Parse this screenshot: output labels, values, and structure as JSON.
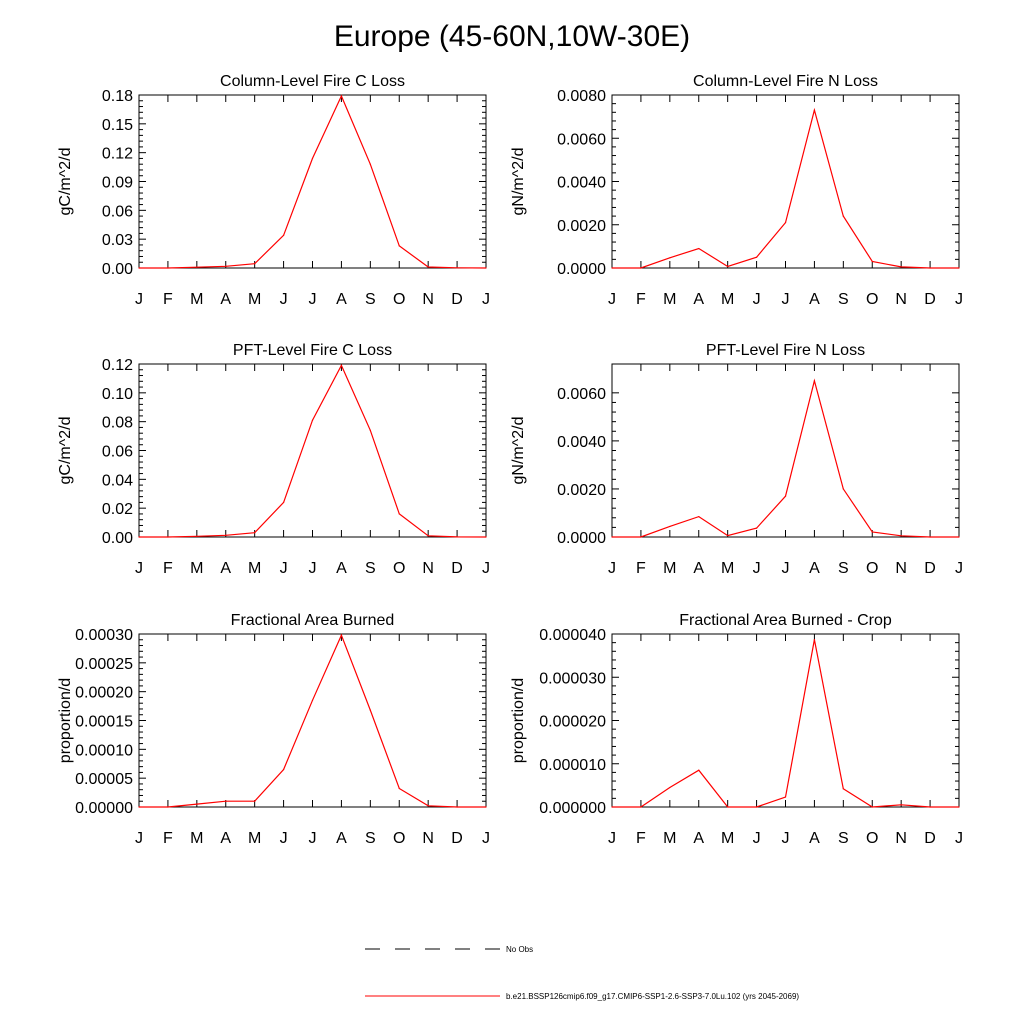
{
  "figure": {
    "title": "Europe (45-60N,10W-30E)"
  },
  "chart_data": [
    {
      "type": "line",
      "title": "Column-Level Fire C Loss",
      "ylabel": "gC/m^2/d",
      "xlabel": "",
      "categories": [
        "J",
        "F",
        "M",
        "A",
        "M",
        "J",
        "J",
        "A",
        "S",
        "O",
        "N",
        "D",
        "J"
      ],
      "ylim": [
        0,
        0.18
      ],
      "yticks": [
        "0.00",
        "0.03",
        "0.06",
        "0.09",
        "0.12",
        "0.15",
        "0.18"
      ],
      "series": [
        {
          "values": [
            0.0,
            0.0,
            0.0008,
            0.0018,
            0.0045,
            0.034,
            0.114,
            0.179,
            0.108,
            0.023,
            0.001,
            0.0002,
            0.0
          ]
        }
      ]
    },
    {
      "type": "line",
      "title": "Column-Level Fire N Loss",
      "ylabel": "gN/m^2/d",
      "xlabel": "",
      "categories": [
        "J",
        "F",
        "M",
        "A",
        "M",
        "J",
        "J",
        "A",
        "S",
        "O",
        "N",
        "D",
        "J"
      ],
      "ylim": [
        0,
        0.008
      ],
      "yticks": [
        "0.0000",
        "0.0020",
        "0.0040",
        "0.0060",
        "0.0080"
      ],
      "series": [
        {
          "values": [
            0.0,
            0.0,
            0.00047,
            0.0009,
            7e-05,
            0.0005,
            0.0021,
            0.0073,
            0.0024,
            0.0003,
            5e-05,
            0.0,
            0.0
          ]
        }
      ]
    },
    {
      "type": "line",
      "title": "PFT-Level Fire C Loss",
      "ylabel": "gC/m^2/d",
      "xlabel": "",
      "categories": [
        "J",
        "F",
        "M",
        "A",
        "M",
        "J",
        "J",
        "A",
        "S",
        "O",
        "N",
        "D",
        "J"
      ],
      "ylim": [
        0,
        0.12
      ],
      "yticks": [
        "0.00",
        "0.02",
        "0.04",
        "0.06",
        "0.08",
        "0.10",
        "0.12"
      ],
      "series": [
        {
          "values": [
            0.0,
            0.0,
            0.0005,
            0.0012,
            0.003,
            0.024,
            0.081,
            0.119,
            0.074,
            0.016,
            0.0008,
            0.0001,
            0.0
          ]
        }
      ]
    },
    {
      "type": "line",
      "title": "PFT-Level Fire N Loss",
      "ylabel": "gN/m^2/d",
      "xlabel": "",
      "categories": [
        "J",
        "F",
        "M",
        "A",
        "M",
        "J",
        "J",
        "A",
        "S",
        "O",
        "N",
        "D",
        "J"
      ],
      "ylim": [
        0,
        0.0072
      ],
      "yticks": [
        "0.0000",
        "0.0020",
        "0.0040",
        "0.0060"
      ],
      "series": [
        {
          "values": [
            0.0,
            0.0,
            0.00044,
            0.00085,
            6e-05,
            0.00037,
            0.0017,
            0.0065,
            0.002,
            0.00021,
            5e-05,
            0.0,
            0.0
          ]
        }
      ]
    },
    {
      "type": "line",
      "title": "Fractional Area Burned",
      "ylabel": "proportion/d",
      "xlabel": "",
      "categories": [
        "J",
        "F",
        "M",
        "A",
        "M",
        "J",
        "J",
        "A",
        "S",
        "O",
        "N",
        "D",
        "J"
      ],
      "ylim": [
        0,
        0.0003
      ],
      "yticks": [
        "0.00000",
        "0.00005",
        "0.00010",
        "0.00015",
        "0.00020",
        "0.00025",
        "0.00030"
      ],
      "series": [
        {
          "values": [
            0.0,
            0.0,
            5e-06,
            1e-05,
            1e-05,
            6.5e-05,
            0.000185,
            0.000298,
            0.000168,
            3.2e-05,
            2e-06,
            0.0,
            0.0
          ]
        }
      ]
    },
    {
      "type": "line",
      "title": "Fractional Area Burned - Crop",
      "ylabel": "proportion/d",
      "xlabel": "",
      "categories": [
        "J",
        "F",
        "M",
        "A",
        "M",
        "J",
        "J",
        "A",
        "S",
        "O",
        "N",
        "D",
        "J"
      ],
      "ylim": [
        0,
        4e-05
      ],
      "yticks": [
        "0.000000",
        "0.000010",
        "0.000020",
        "0.000030",
        "0.000040"
      ],
      "series": [
        {
          "values": [
            0.0,
            0.0,
            4.5e-06,
            8.5e-06,
            0.0,
            0.0,
            2.3e-06,
            3.87e-05,
            4.2e-06,
            0.0,
            5e-07,
            0.0,
            0.0
          ]
        }
      ]
    }
  ],
  "legend": {
    "placement": "bottom-center",
    "entries": [
      {
        "label": "No Obs",
        "style": "dashed",
        "color": "#000000"
      },
      {
        "label": "b.e21.BSSP126cmip6.f09_g17.CMIP6-SSP1-2.6-SSP3-7.0Lu.102 (yrs 2045-2069)",
        "style": "solid",
        "color": "#ff0000"
      }
    ]
  },
  "colors": {
    "series": "#ff0000",
    "axes": "#000000",
    "background": "#ffffff"
  }
}
